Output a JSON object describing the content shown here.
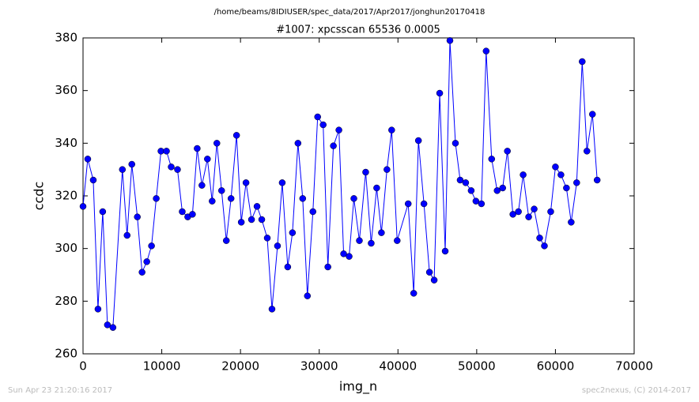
{
  "chart_data": {
    "type": "line",
    "title": "/home/beams/8IDIUSER/spec_data/2017/Apr2017/jonghun20170418",
    "subtitle": "#1007: xpcsscan 65536 0.0005",
    "x_label": "img_n",
    "y_label": "ccdc",
    "footer_left": "Sun Apr 23 21:20:16 2017",
    "footer_right": "spec2nexus, (C) 2014-2017",
    "xlim": [
      0,
      70000
    ],
    "xticks": [
      0,
      10000,
      20000,
      30000,
      40000,
      50000,
      60000,
      70000
    ],
    "ylim": [
      260,
      380
    ],
    "yticks": [
      260,
      280,
      300,
      320,
      340,
      360,
      380
    ],
    "grid": false,
    "x": [
      0,
      600,
      1300,
      1900,
      2500,
      3100,
      3800,
      5000,
      5600,
      6200,
      6900,
      7500,
      8100,
      8700,
      9300,
      9900,
      10600,
      11200,
      12000,
      12600,
      13300,
      13900,
      14500,
      15100,
      15800,
      16400,
      17000,
      17600,
      18200,
      18800,
      19500,
      20100,
      20700,
      21400,
      22100,
      22700,
      23400,
      24000,
      24700,
      25300,
      26000,
      26600,
      27300,
      27900,
      28500,
      29200,
      29800,
      30500,
      31100,
      31800,
      32500,
      33100,
      33800,
      34400,
      35100,
      35900,
      36600,
      37300,
      37900,
      38600,
      39200,
      39900,
      41300,
      42000,
      42600,
      43300,
      44000,
      44600,
      45300,
      46000,
      46600,
      47300,
      47900,
      48600,
      49300,
      49900,
      50600,
      51200,
      51900,
      52600,
      53300,
      53900,
      54600,
      55300,
      55900,
      56600,
      57300,
      58000,
      58600,
      59400,
      60000,
      60700,
      61400,
      62000,
      62700,
      63400,
      64000,
      64700,
      65300
    ],
    "series": [
      {
        "color": "#0000ff",
        "values": [
          316,
          334,
          326,
          277,
          314,
          271,
          270,
          330,
          305,
          332,
          312,
          291,
          295,
          301,
          319,
          337,
          337,
          331,
          330,
          314,
          312,
          313,
          338,
          324,
          334,
          318,
          340,
          322,
          303,
          319,
          343,
          310,
          325,
          311,
          316,
          311,
          304,
          277,
          301,
          325,
          293,
          306,
          340,
          319,
          282,
          314,
          350,
          347,
          293,
          339,
          345,
          298,
          297,
          319,
          303,
          329,
          302,
          323,
          306,
          330,
          345,
          303,
          317,
          283,
          341,
          317,
          291,
          288,
          359,
          299,
          379,
          340,
          326,
          325,
          322,
          318,
          317,
          375,
          334,
          322,
          323,
          337,
          313,
          314,
          328,
          312,
          315,
          304,
          301,
          314,
          331,
          328,
          323,
          310,
          325,
          371,
          337,
          351,
          326
        ]
      }
    ]
  }
}
